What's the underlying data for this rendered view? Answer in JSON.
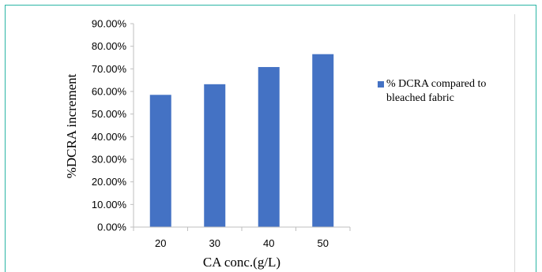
{
  "chart_data": {
    "type": "bar",
    "categories": [
      "20",
      "30",
      "40",
      "50"
    ],
    "series": [
      {
        "name": "% DCRA compared to bleached fabric",
        "values": [
          0.585,
          0.632,
          0.708,
          0.765
        ],
        "color": "#4472c4"
      }
    ],
    "xlabel": "CA conc.(g/L)",
    "ylabel": "%DCRA increment",
    "ylim": [
      0,
      0.9
    ],
    "yticks": [
      "0.00%",
      "10.00%",
      "20.00%",
      "30.00%",
      "40.00%",
      "50.00%",
      "60.00%",
      "70.00%",
      "80.00%",
      "90.00%"
    ],
    "grid": false,
    "legend_position": "right"
  }
}
